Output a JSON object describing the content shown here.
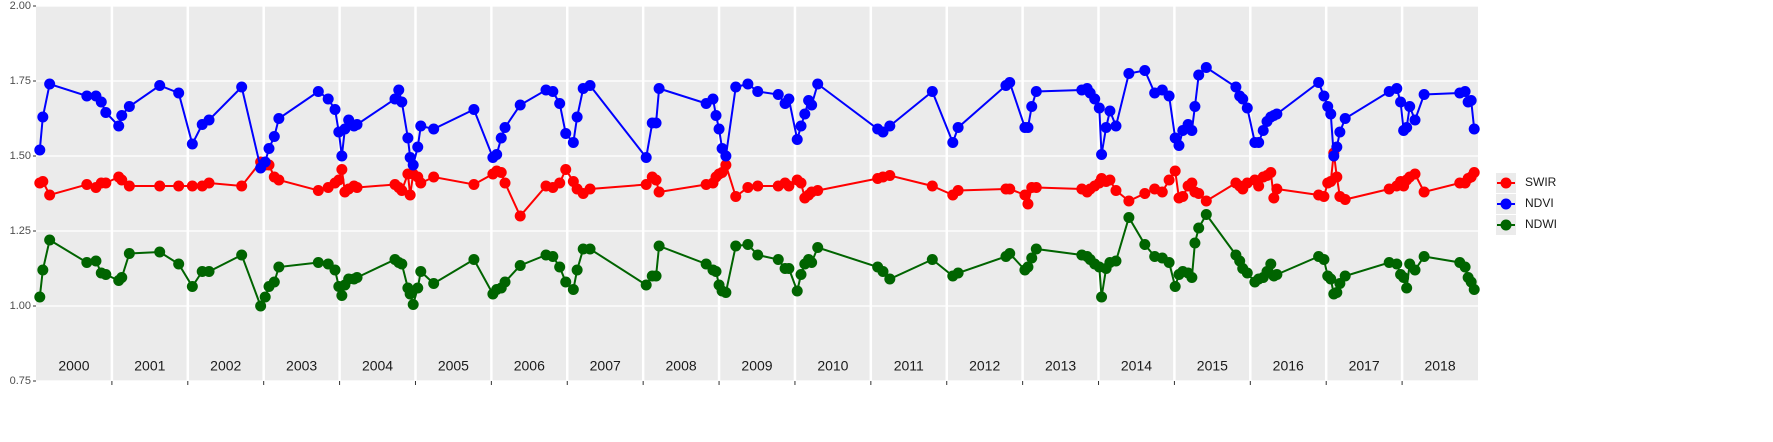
{
  "chart_data": {
    "type": "line",
    "x": [
      2000.05,
      2000.09,
      2000.18,
      2000.67,
      2000.79,
      2000.86,
      2000.92,
      2001.09,
      2001.13,
      2001.23,
      2001.63,
      2001.88,
      2002.06,
      2002.19,
      2002.28,
      2002.71,
      2002.96,
      2003.02,
      2003.07,
      2003.14,
      2003.2,
      2003.72,
      2003.85,
      2003.94,
      2003.99,
      2004.03,
      2004.07,
      2004.12,
      2004.19,
      2004.23,
      2004.73,
      2004.78,
      2004.82,
      2004.9,
      2004.93,
      2004.97,
      2005.03,
      2005.07,
      2005.24,
      2005.77,
      2006.02,
      2006.07,
      2006.13,
      2006.18,
      2006.38,
      2006.72,
      2006.81,
      2006.9,
      2006.98,
      2007.08,
      2007.13,
      2007.21,
      2007.3,
      2008.04,
      2008.12,
      2008.17,
      2008.21,
      2008.83,
      2008.92,
      2008.96,
      2009.0,
      2009.04,
      2009.09,
      2009.22,
      2009.38,
      2009.51,
      2009.78,
      2009.87,
      2009.92,
      2010.03,
      2010.08,
      2010.13,
      2010.18,
      2010.22,
      2010.3,
      2011.09,
      2011.16,
      2011.25,
      2011.81,
      2012.08,
      2012.15,
      2012.78,
      2012.83,
      2013.03,
      2013.07,
      2013.12,
      2013.18,
      2013.78,
      2013.85,
      2013.89,
      2013.95,
      2014.01,
      2014.04,
      2014.1,
      2014.15,
      2014.23,
      2014.4,
      2014.61,
      2014.74,
      2014.84,
      2014.93,
      2015.01,
      2015.06,
      2015.11,
      2015.18,
      2015.23,
      2015.27,
      2015.32,
      2015.42,
      2015.81,
      2015.86,
      2015.9,
      2015.96,
      2016.06,
      2016.11,
      2016.17,
      2016.22,
      2016.27,
      2016.31,
      2016.35,
      2016.9,
      2016.97,
      2017.02,
      2017.06,
      2017.1,
      2017.14,
      2017.18,
      2017.25,
      2017.83,
      2017.93,
      2017.98,
      2018.02,
      2018.06,
      2018.1,
      2018.17,
      2018.29,
      2018.76,
      2018.83,
      2018.87,
      2018.91,
      2018.95
    ],
    "series": [
      {
        "name": "SWIR",
        "color": "#ff0000",
        "values": [
          1.41,
          1.415,
          1.37,
          1.405,
          1.395,
          1.41,
          1.41,
          1.43,
          1.42,
          1.4,
          1.4,
          1.4,
          1.4,
          1.4,
          1.41,
          1.4,
          1.48,
          1.47,
          1.47,
          1.43,
          1.42,
          1.385,
          1.395,
          1.41,
          1.42,
          1.455,
          1.38,
          1.39,
          1.4,
          1.395,
          1.405,
          1.395,
          1.385,
          1.44,
          1.37,
          1.44,
          1.43,
          1.41,
          1.43,
          1.405,
          1.44,
          1.45,
          1.445,
          1.41,
          1.3,
          1.4,
          1.395,
          1.41,
          1.455,
          1.415,
          1.39,
          1.375,
          1.39,
          1.405,
          1.43,
          1.42,
          1.38,
          1.405,
          1.41,
          1.43,
          1.44,
          1.445,
          1.47,
          1.365,
          1.395,
          1.4,
          1.4,
          1.41,
          1.4,
          1.42,
          1.41,
          1.36,
          1.37,
          1.38,
          1.385,
          1.425,
          1.43,
          1.435,
          1.4,
          1.37,
          1.385,
          1.39,
          1.39,
          1.37,
          1.34,
          1.395,
          1.395,
          1.39,
          1.38,
          1.39,
          1.4,
          1.41,
          1.425,
          1.415,
          1.42,
          1.385,
          1.35,
          1.375,
          1.39,
          1.38,
          1.42,
          1.45,
          1.36,
          1.365,
          1.4,
          1.41,
          1.38,
          1.375,
          1.35,
          1.41,
          1.4,
          1.39,
          1.41,
          1.42,
          1.4,
          1.43,
          1.435,
          1.445,
          1.36,
          1.39,
          1.37,
          1.365,
          1.41,
          1.415,
          1.51,
          1.43,
          1.365,
          1.355,
          1.39,
          1.4,
          1.415,
          1.4,
          1.42,
          1.43,
          1.44,
          1.38,
          1.41,
          1.41,
          1.425,
          1.43,
          1.445
        ]
      },
      {
        "name": "NDVI",
        "color": "#0000ff",
        "values": [
          1.52,
          1.63,
          1.74,
          1.7,
          1.7,
          1.68,
          1.645,
          1.6,
          1.635,
          1.665,
          1.735,
          1.71,
          1.54,
          1.605,
          1.62,
          1.73,
          1.46,
          1.48,
          1.525,
          1.565,
          1.625,
          1.715,
          1.69,
          1.655,
          1.58,
          1.5,
          1.59,
          1.62,
          1.6,
          1.605,
          1.69,
          1.72,
          1.68,
          1.56,
          1.495,
          1.47,
          1.53,
          1.6,
          1.59,
          1.655,
          1.495,
          1.505,
          1.56,
          1.595,
          1.67,
          1.72,
          1.715,
          1.675,
          1.575,
          1.545,
          1.63,
          1.725,
          1.735,
          1.495,
          1.61,
          1.61,
          1.725,
          1.675,
          1.69,
          1.635,
          1.59,
          1.525,
          1.5,
          1.73,
          1.74,
          1.715,
          1.705,
          1.675,
          1.69,
          1.555,
          1.6,
          1.64,
          1.685,
          1.67,
          1.74,
          1.59,
          1.58,
          1.6,
          1.715,
          1.545,
          1.595,
          1.735,
          1.745,
          1.595,
          1.595,
          1.665,
          1.715,
          1.72,
          1.725,
          1.71,
          1.69,
          1.66,
          1.505,
          1.595,
          1.65,
          1.6,
          1.775,
          1.785,
          1.71,
          1.72,
          1.7,
          1.56,
          1.535,
          1.585,
          1.605,
          1.585,
          1.665,
          1.77,
          1.795,
          1.73,
          1.7,
          1.69,
          1.66,
          1.545,
          1.545,
          1.585,
          1.615,
          1.63,
          1.635,
          1.64,
          1.745,
          1.7,
          1.665,
          1.64,
          1.5,
          1.53,
          1.58,
          1.625,
          1.715,
          1.725,
          1.68,
          1.585,
          1.595,
          1.665,
          1.62,
          1.705,
          1.71,
          1.715,
          1.68,
          1.685,
          1.59
        ]
      },
      {
        "name": "NDWI",
        "color": "#006400",
        "values": [
          1.03,
          1.12,
          1.22,
          1.145,
          1.15,
          1.11,
          1.105,
          1.085,
          1.095,
          1.175,
          1.18,
          1.14,
          1.065,
          1.115,
          1.115,
          1.17,
          1.0,
          1.03,
          1.065,
          1.08,
          1.13,
          1.145,
          1.14,
          1.12,
          1.065,
          1.035,
          1.07,
          1.09,
          1.09,
          1.095,
          1.155,
          1.145,
          1.14,
          1.06,
          1.04,
          1.005,
          1.06,
          1.115,
          1.075,
          1.155,
          1.04,
          1.055,
          1.06,
          1.08,
          1.135,
          1.17,
          1.165,
          1.13,
          1.08,
          1.055,
          1.12,
          1.19,
          1.19,
          1.07,
          1.1,
          1.1,
          1.2,
          1.14,
          1.12,
          1.115,
          1.07,
          1.05,
          1.045,
          1.2,
          1.205,
          1.17,
          1.155,
          1.125,
          1.125,
          1.05,
          1.105,
          1.14,
          1.155,
          1.145,
          1.195,
          1.13,
          1.115,
          1.09,
          1.155,
          1.1,
          1.11,
          1.165,
          1.175,
          1.12,
          1.13,
          1.16,
          1.19,
          1.17,
          1.165,
          1.155,
          1.14,
          1.13,
          1.03,
          1.125,
          1.145,
          1.15,
          1.295,
          1.205,
          1.165,
          1.16,
          1.145,
          1.065,
          1.105,
          1.115,
          1.11,
          1.095,
          1.21,
          1.26,
          1.305,
          1.17,
          1.15,
          1.125,
          1.11,
          1.08,
          1.09,
          1.095,
          1.115,
          1.14,
          1.1,
          1.105,
          1.165,
          1.155,
          1.1,
          1.09,
          1.04,
          1.045,
          1.075,
          1.1,
          1.145,
          1.14,
          1.105,
          1.095,
          1.06,
          1.14,
          1.12,
          1.165,
          1.145,
          1.13,
          1.095,
          1.08,
          1.055
        ]
      }
    ],
    "xlim": [
      2000,
      2019
    ],
    "xticks": [
      2001,
      2002,
      2003,
      2004,
      2005,
      2006,
      2007,
      2008,
      2009,
      2010,
      2011,
      2012,
      2013,
      2014,
      2015,
      2016,
      2017,
      2018
    ],
    "year_labels": [
      "2000",
      "2001",
      "2002",
      "2003",
      "2004",
      "2005",
      "2006",
      "2007",
      "2008",
      "2009",
      "2010",
      "2011",
      "2012",
      "2013",
      "2014",
      "2015",
      "2016",
      "2017",
      "2018"
    ],
    "ylim": [
      0.75,
      2.0
    ],
    "yticks": [
      {
        "value": 0.75,
        "label": "0.75"
      },
      {
        "value": 1.0,
        "label": "1.00"
      },
      {
        "value": 1.25,
        "label": "1.25"
      },
      {
        "value": 1.5,
        "label": "1.50"
      },
      {
        "value": 1.75,
        "label": "1.75"
      },
      {
        "value": 2.0,
        "label": "2.00"
      }
    ],
    "grid": true,
    "legend": "right"
  }
}
